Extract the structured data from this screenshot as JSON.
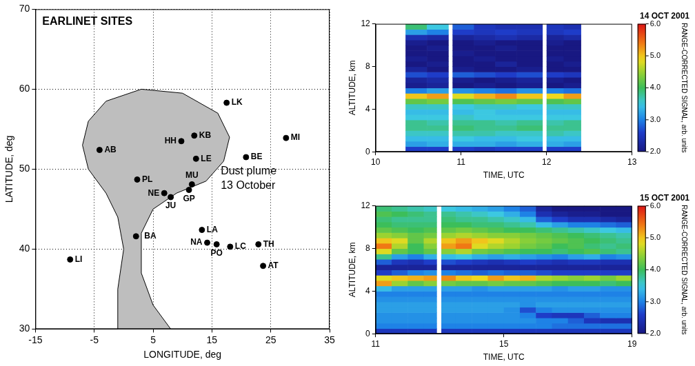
{
  "chart_data": [
    {
      "type": "map",
      "title": "EARLINET SITES",
      "xlabel": "LONGITUDE, deg",
      "ylabel": "LATITUDE, deg",
      "xlim": [
        -15,
        35
      ],
      "xticks": [
        -15,
        -5,
        5,
        15,
        25,
        35
      ],
      "ylim": [
        30,
        70
      ],
      "yticks": [
        30,
        40,
        50,
        60,
        70
      ],
      "grid": true,
      "annotation": [
        "Dust plume",
        "13 October"
      ],
      "plume": {
        "color": "#bebebe",
        "x": [
          -1,
          -1,
          0,
          -1,
          -3,
          -6,
          -7,
          -6,
          -3,
          3,
          10,
          16,
          18,
          17,
          14,
          9,
          5,
          3,
          3,
          5,
          8
        ],
        "y": [
          30,
          35,
          40,
          44,
          47,
          50,
          53,
          56,
          58.5,
          60,
          59.5,
          57,
          54,
          51,
          48.5,
          47,
          45,
          42,
          37,
          33,
          30
        ]
      },
      "sites": {
        "color": "#000000",
        "labels": [
          "AB",
          "HH",
          "KB",
          "LK",
          "LE",
          "BE",
          "MI",
          "PL",
          "NE",
          "MU",
          "JU",
          "GP",
          "BA",
          "LA",
          "NA",
          "PO",
          "LC",
          "TH",
          "AT",
          "LI"
        ],
        "x": [
          -4.1,
          9.8,
          12.0,
          17.5,
          12.3,
          20.8,
          27.6,
          2.3,
          6.9,
          11.6,
          8.0,
          11.1,
          2.1,
          13.3,
          14.2,
          15.8,
          18.1,
          22.9,
          23.7,
          -9.1
        ],
        "y": [
          52.4,
          53.5,
          54.2,
          58.3,
          51.3,
          51.5,
          53.9,
          48.7,
          47.0,
          48.1,
          46.5,
          47.4,
          41.6,
          42.4,
          40.8,
          40.6,
          40.3,
          40.6,
          37.9,
          38.7
        ]
      }
    },
    {
      "type": "heatmap",
      "title": "14 OCT 2001",
      "xlabel": "TIME, UTC",
      "ylabel": "ALTITUDE, km",
      "xlim": [
        10,
        13
      ],
      "xticks": [
        10,
        11,
        12,
        13
      ],
      "ylim": [
        0,
        12
      ],
      "yticks": [
        0,
        4,
        8,
        12
      ],
      "grid": false,
      "x_bins": [
        10.35,
        10.6,
        10.85,
        10.9,
        11.15,
        11.4,
        11.65,
        11.95,
        12.0,
        12.2,
        12.4
      ],
      "y_bins": [
        0,
        0.5,
        1,
        1.5,
        2,
        2.5,
        3,
        3.5,
        4,
        4.5,
        5,
        5.5,
        6,
        6.5,
        7,
        7.5,
        8,
        8.5,
        9,
        9.5,
        10,
        10.5,
        11,
        11.5,
        12
      ],
      "cells": [
        [
          2.6,
          2.6,
          null,
          2.6,
          2.5,
          2.6,
          2.6,
          null,
          2.6,
          2.6
        ],
        [
          3.2,
          3.3,
          null,
          3.3,
          3.3,
          3.2,
          3.3,
          null,
          3.3,
          3.2
        ],
        [
          3.4,
          3.4,
          null,
          3.5,
          3.4,
          3.4,
          3.5,
          null,
          3.4,
          3.4
        ],
        [
          3.6,
          3.6,
          null,
          3.7,
          3.7,
          3.6,
          3.6,
          null,
          3.7,
          3.6
        ],
        [
          3.8,
          3.8,
          null,
          3.9,
          3.8,
          3.8,
          3.9,
          null,
          3.8,
          3.8
        ],
        [
          3.8,
          3.7,
          null,
          3.8,
          3.8,
          3.7,
          3.8,
          null,
          3.7,
          3.8
        ],
        [
          3.5,
          3.5,
          null,
          3.6,
          3.5,
          3.5,
          3.5,
          null,
          3.5,
          3.5
        ],
        [
          3.4,
          3.4,
          null,
          3.4,
          3.5,
          3.4,
          3.4,
          null,
          3.4,
          3.4
        ],
        [
          3.6,
          3.6,
          null,
          3.5,
          3.6,
          3.6,
          3.5,
          null,
          3.6,
          3.6
        ],
        [
          4.2,
          4.3,
          null,
          4.1,
          4.2,
          4.3,
          4.2,
          null,
          4.1,
          4.2
        ],
        [
          5.0,
          5.2,
          null,
          4.8,
          5.1,
          5.3,
          5.0,
          null,
          4.9,
          5.2
        ],
        [
          3.0,
          3.2,
          null,
          3.1,
          3.0,
          2.9,
          3.1,
          null,
          3.0,
          2.9
        ],
        [
          2.1,
          2.2,
          null,
          2.0,
          2.1,
          2.0,
          2.1,
          null,
          2.0,
          2.1
        ],
        [
          2.2,
          2.3,
          null,
          2.1,
          2.0,
          2.1,
          2.2,
          null,
          2.1,
          2.0
        ],
        [
          2.7,
          2.6,
          null,
          2.8,
          2.7,
          2.6,
          2.7,
          null,
          2.6,
          2.5
        ],
        [
          2.2,
          2.0,
          null,
          2.1,
          2.0,
          2.0,
          2.1,
          null,
          2.0,
          2.0
        ],
        [
          2.0,
          2.1,
          null,
          2.0,
          2.0,
          2.2,
          2.0,
          null,
          2.0,
          2.1
        ],
        [
          2.1,
          2.0,
          null,
          2.0,
          2.1,
          2.0,
          2.0,
          null,
          2.1,
          2.0
        ],
        [
          2.0,
          2.0,
          null,
          2.1,
          2.0,
          2.0,
          2.0,
          null,
          2.0,
          2.0
        ],
        [
          2.0,
          2.1,
          null,
          2.0,
          2.0,
          2.1,
          2.0,
          null,
          2.0,
          2.0
        ],
        [
          2.1,
          2.0,
          null,
          2.0,
          2.1,
          2.0,
          2.0,
          null,
          2.1,
          2.0
        ],
        [
          2.4,
          2.3,
          null,
          2.2,
          2.3,
          2.4,
          2.3,
          null,
          2.2,
          2.3
        ],
        [
          3.2,
          3.0,
          null,
          2.6,
          2.5,
          2.6,
          2.5,
          null,
          2.5,
          2.6
        ],
        [
          3.9,
          3.5,
          null,
          2.8,
          2.5,
          2.4,
          2.4,
          null,
          2.5,
          2.4
        ]
      ],
      "colorbar": {
        "label": "RANGE-CORRECTED SIGNAL, arb. units",
        "range": [
          2,
          6
        ],
        "ticks": [
          {
            "value": 2,
            "label": "2.0"
          },
          {
            "value": 3,
            "label": "3.0"
          },
          {
            "value": 4,
            "label": "4.0"
          },
          {
            "value": 5,
            "label": "5.0"
          },
          {
            "value": 6,
            "label": "6.0"
          }
        ]
      }
    },
    {
      "type": "heatmap",
      "title": "15 OCT 2001",
      "xlabel": "TIME, UTC",
      "ylabel": "ALTITUDE, km",
      "xlim": [
        11,
        19
      ],
      "xticks": [
        11,
        15,
        19
      ],
      "ylim": [
        0,
        12
      ],
      "yticks": [
        0,
        4,
        8,
        12
      ],
      "grid": false,
      "x_bins": [
        11,
        11.5,
        12,
        12.5,
        12.9,
        13.05,
        13.5,
        14,
        14.5,
        15,
        15.5,
        16,
        16.5,
        17,
        17.5,
        18,
        18.5,
        19
      ],
      "y_bins": [
        0,
        0.5,
        1,
        1.5,
        2,
        2.5,
        3,
        3.5,
        4,
        4.5,
        5,
        5.5,
        6,
        6.5,
        7,
        7.5,
        8,
        8.5,
        9,
        9.5,
        10,
        10.5,
        11,
        11.5,
        12
      ],
      "cells": [
        [
          2.5,
          2.5,
          2.5,
          2.5,
          null,
          2.5,
          2.5,
          2.5,
          2.5,
          2.5,
          2.5,
          2.5,
          2.5,
          2.5,
          2.5,
          2.5,
          2.5
        ],
        [
          3.0,
          3.0,
          3.0,
          3.0,
          null,
          3.0,
          3.0,
          3.0,
          3.0,
          3.0,
          3.0,
          3.0,
          2.9,
          2.9,
          2.9,
          2.9,
          2.9
        ],
        [
          3.1,
          3.1,
          3.1,
          3.1,
          null,
          3.1,
          3.1,
          3.1,
          3.1,
          3.1,
          3.1,
          3.0,
          3.0,
          2.8,
          2.5,
          2.4,
          2.4
        ],
        [
          3.1,
          3.1,
          3.1,
          3.1,
          null,
          3.1,
          3.1,
          3.1,
          3.1,
          3.1,
          3.0,
          2.6,
          2.5,
          2.5,
          2.8,
          3.0,
          3.0
        ],
        [
          3.2,
          3.2,
          3.2,
          3.2,
          null,
          3.2,
          3.2,
          3.2,
          3.2,
          3.1,
          2.7,
          3.0,
          3.1,
          3.1,
          3.1,
          3.1,
          3.1
        ],
        [
          3.2,
          3.2,
          3.2,
          3.2,
          null,
          3.2,
          3.2,
          3.2,
          3.2,
          3.2,
          3.1,
          3.2,
          3.2,
          3.2,
          3.2,
          3.2,
          3.2
        ],
        [
          3.1,
          3.1,
          3.1,
          3.1,
          null,
          3.1,
          3.1,
          3.1,
          3.1,
          3.1,
          3.1,
          3.1,
          3.1,
          3.1,
          3.1,
          3.1,
          3.1
        ],
        [
          3.0,
          3.0,
          3.0,
          3.0,
          null,
          3.0,
          3.0,
          3.0,
          3.0,
          3.0,
          3.0,
          3.0,
          3.0,
          3.0,
          3.0,
          3.0,
          3.0
        ],
        [
          3.4,
          3.2,
          3.2,
          3.2,
          null,
          3.2,
          3.2,
          3.1,
          3.2,
          3.2,
          3.2,
          3.2,
          3.1,
          3.2,
          3.2,
          3.1,
          3.1
        ],
        [
          5.2,
          4.5,
          4.2,
          4.4,
          null,
          4.3,
          4.2,
          4.2,
          4.3,
          4.2,
          4.2,
          4.1,
          4.0,
          4.0,
          4.0,
          3.9,
          4.0
        ],
        [
          4.8,
          5.0,
          5.1,
          5.2,
          null,
          5.3,
          5.0,
          4.9,
          5.2,
          5.0,
          5.1,
          4.6,
          4.5,
          4.4,
          4.5,
          4.3,
          4.5
        ],
        [
          2.6,
          2.8,
          3.0,
          3.1,
          null,
          3.0,
          2.9,
          2.8,
          2.9,
          2.8,
          2.8,
          2.7,
          2.6,
          2.6,
          2.6,
          2.6,
          2.6
        ],
        [
          2.2,
          2.2,
          2.2,
          2.2,
          null,
          2.2,
          2.2,
          2.2,
          2.2,
          2.2,
          2.2,
          2.2,
          2.2,
          2.2,
          2.2,
          2.2,
          2.2
        ],
        [
          2.8,
          2.5,
          2.4,
          2.6,
          null,
          2.7,
          2.6,
          2.5,
          2.4,
          2.5,
          2.6,
          2.5,
          2.4,
          2.5,
          2.5,
          2.4,
          2.4
        ],
        [
          3.8,
          3.2,
          3.0,
          3.3,
          null,
          3.4,
          3.5,
          3.3,
          3.2,
          3.3,
          3.2,
          3.1,
          3.0,
          3.2,
          3.3,
          3.0,
          3.1
        ],
        [
          4.8,
          4.2,
          4.0,
          4.2,
          null,
          4.4,
          4.6,
          4.3,
          4.2,
          4.1,
          4.0,
          4.0,
          3.9,
          4.0,
          4.1,
          3.9,
          3.8
        ],
        [
          5.4,
          4.6,
          4.0,
          4.4,
          null,
          5.2,
          5.4,
          4.8,
          4.6,
          4.5,
          4.3,
          4.2,
          4.0,
          4.1,
          3.9,
          3.8,
          3.9
        ],
        [
          5.0,
          4.8,
          4.2,
          4.6,
          null,
          5.0,
          5.2,
          5.0,
          4.8,
          4.6,
          4.4,
          4.3,
          4.2,
          4.1,
          4.0,
          3.9,
          3.8
        ],
        [
          4.5,
          4.4,
          4.2,
          4.3,
          null,
          4.5,
          4.6,
          4.5,
          4.4,
          4.4,
          4.3,
          4.2,
          4.1,
          4.0,
          3.9,
          3.8,
          3.7
        ],
        [
          4.2,
          4.1,
          4.0,
          4.1,
          null,
          4.2,
          4.3,
          4.2,
          4.1,
          4.0,
          4.0,
          3.9,
          3.8,
          3.7,
          3.6,
          3.5,
          3.4
        ],
        [
          4.0,
          3.9,
          3.9,
          3.9,
          null,
          4.0,
          4.0,
          3.9,
          3.9,
          3.8,
          3.7,
          3.4,
          3.2,
          3.0,
          3.0,
          2.9,
          2.8
        ],
        [
          3.9,
          3.8,
          3.8,
          3.8,
          null,
          3.9,
          3.8,
          3.8,
          3.7,
          3.6,
          3.4,
          2.8,
          2.6,
          2.4,
          2.4,
          2.3,
          2.2
        ],
        [
          4.1,
          4.0,
          3.9,
          3.8,
          null,
          3.8,
          3.7,
          3.6,
          3.5,
          3.3,
          3.0,
          2.4,
          2.2,
          2.1,
          2.1,
          2.0,
          2.0
        ],
        [
          3.9,
          3.8,
          3.7,
          3.6,
          null,
          3.5,
          3.4,
          3.3,
          3.2,
          3.0,
          2.8,
          2.2,
          2.0,
          2.0,
          2.0,
          2.0,
          2.0
        ]
      ],
      "colorbar": {
        "label": "RANGE-CORRECTED SIGNAL, arb. units",
        "range": [
          2,
          6
        ],
        "ticks": [
          {
            "value": 2,
            "label": "2.0"
          },
          {
            "value": 3,
            "label": "3.0"
          },
          {
            "value": 4,
            "label": "4.0"
          },
          {
            "value": 5,
            "label": "5.0"
          },
          {
            "value": 6,
            "label": "6.0"
          }
        ]
      }
    }
  ]
}
